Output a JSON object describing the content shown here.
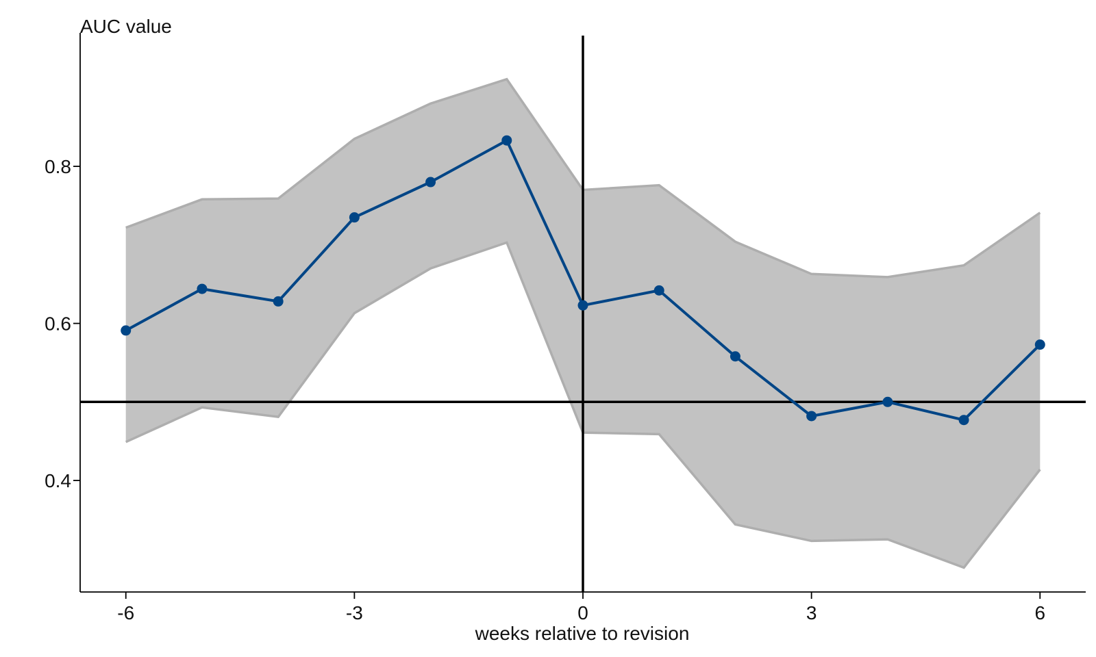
{
  "chart_data": {
    "type": "line",
    "title": "",
    "ylabel": "AUC value",
    "xlabel": "weeks relative to revision",
    "x": [
      -6,
      -5,
      -4,
      -3,
      -2,
      -1,
      0,
      1,
      2,
      3,
      4,
      5,
      6
    ],
    "series": [
      {
        "values": [
          0.591,
          0.644,
          0.628,
          0.735,
          0.78,
          0.833,
          0.623,
          0.642,
          0.558,
          0.482,
          0.5,
          0.477,
          0.573
        ],
        "upper": [
          0.722,
          0.758,
          0.759,
          0.835,
          0.88,
          0.911,
          0.77,
          0.776,
          0.704,
          0.663,
          0.659,
          0.674,
          0.741
        ],
        "lower": [
          0.449,
          0.493,
          0.481,
          0.613,
          0.67,
          0.703,
          0.461,
          0.459,
          0.344,
          0.323,
          0.325,
          0.289,
          0.414
        ]
      }
    ],
    "xticks": [
      -6,
      -3,
      0,
      3,
      6
    ],
    "xtick_labels": [
      "-6",
      "-3",
      "0",
      "3",
      "6"
    ],
    "yticks": [
      0.4,
      0.6,
      0.8
    ],
    "ytick_labels": [
      "0.4",
      "0.6",
      "0.8"
    ],
    "xlim": [
      -6.6,
      6.6
    ],
    "ylim": [
      0.258,
      0.97
    ],
    "reference_lines": {
      "horizontal_y": 0.5,
      "vertical_x": 0
    },
    "grid": false,
    "legend": "none",
    "colors": {
      "line": "#004586",
      "band_fill": "#c2c2c2",
      "band_edge": "#aeaeae",
      "reference": "#000000",
      "axis": "#000000"
    }
  }
}
